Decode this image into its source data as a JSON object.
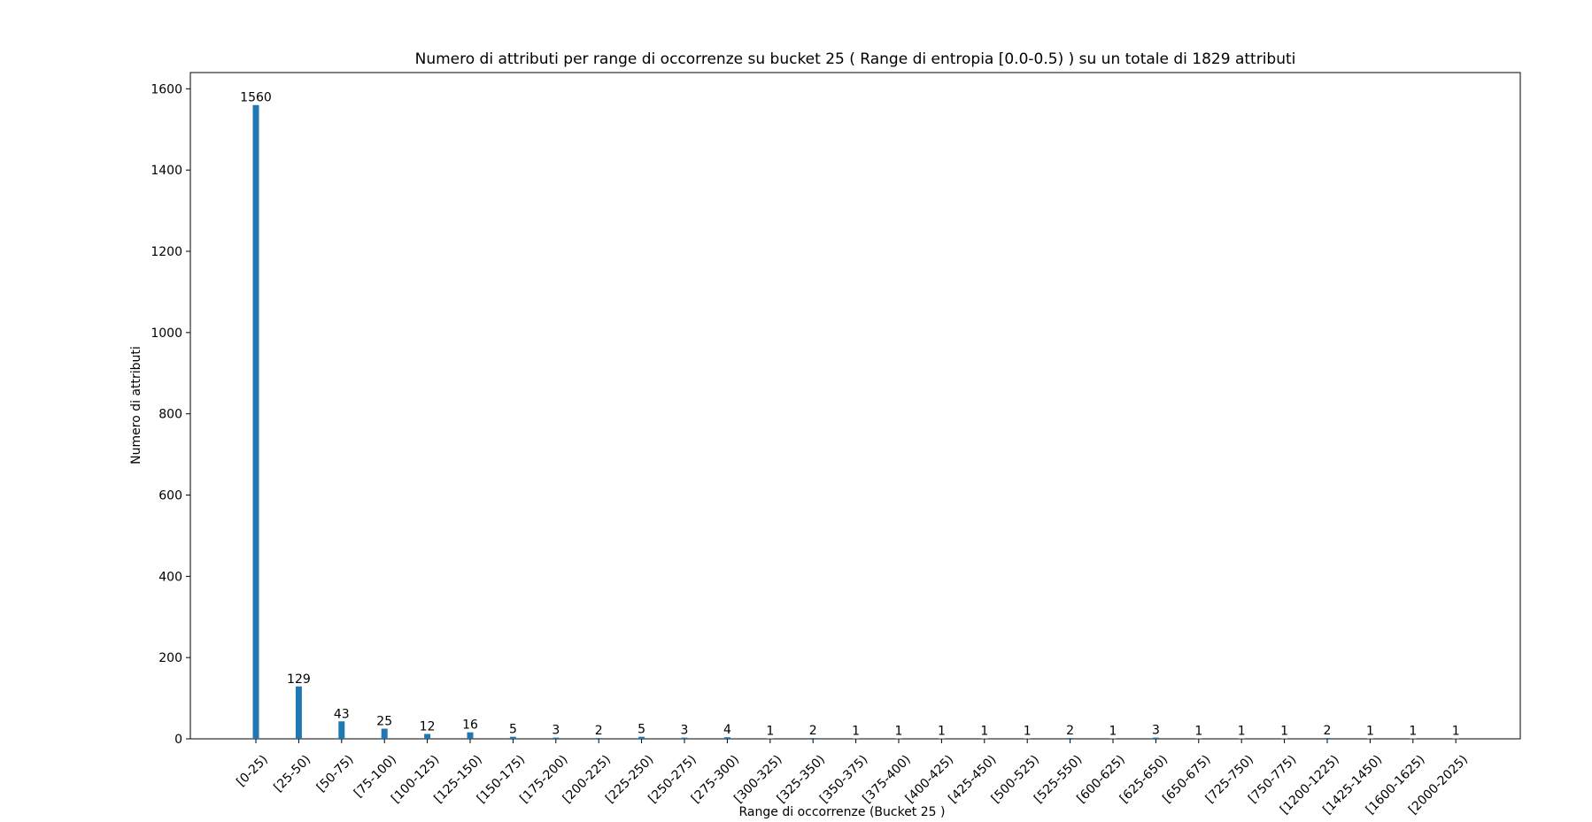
{
  "chart_data": {
    "type": "bar",
    "title": "Numero di attributi per range di occorrenze su bucket 25 ( Range di entropia [0.0-0.5) ) su un totale di 1829 attributi",
    "xlabel": "Range di occorrenze (Bucket 25 )",
    "ylabel": "Numero di attributi",
    "ylim": [
      0,
      1640
    ],
    "yticks": [
      0,
      200,
      400,
      600,
      800,
      1000,
      1200,
      1400,
      1600
    ],
    "grid": false,
    "bar_color": "#1f77b4",
    "categories": [
      "[0-25)",
      "[25-50)",
      "[50-75)",
      "[75-100)",
      "[100-125)",
      "[125-150)",
      "[150-175)",
      "[175-200)",
      "[200-225)",
      "[225-250)",
      "[250-275)",
      "[275-300)",
      "[300-325)",
      "[325-350)",
      "[350-375)",
      "[375-400)",
      "[400-425)",
      "[425-450)",
      "[500-525)",
      "[525-550)",
      "[600-625)",
      "[625-650)",
      "[650-675)",
      "[725-750)",
      "[750-775)",
      "[1200-1225)",
      "[1425-1450)",
      "[1600-1625)",
      "[2000-2025)"
    ],
    "values": [
      1560,
      129,
      43,
      25,
      12,
      16,
      5,
      3,
      2,
      5,
      3,
      4,
      1,
      2,
      1,
      1,
      1,
      1,
      1,
      2,
      1,
      3,
      1,
      1,
      1,
      2,
      1,
      1,
      1
    ]
  }
}
